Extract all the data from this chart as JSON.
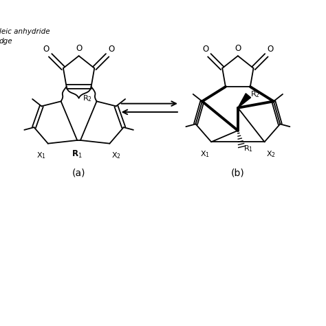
{
  "background_color": "#ffffff",
  "text_color": "#000000",
  "line_color": "#000000",
  "label_a": "(a)",
  "label_b": "(b)",
  "text1": "leic anhydride",
  "text2": "dge",
  "figsize": [
    4.74,
    4.74
  ],
  "dpi": 100,
  "lw": 1.3,
  "lw_thick": 2.8
}
